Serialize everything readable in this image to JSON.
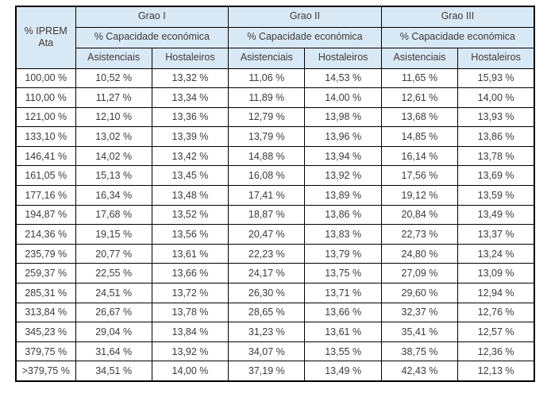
{
  "table": {
    "corner_header": "% IPREM Ata",
    "capacity_label": "% Capacidade económica",
    "groups": [
      {
        "label": "Grao I"
      },
      {
        "label": "Grao II"
      },
      {
        "label": "Grao III"
      }
    ],
    "sub_headers": [
      "Asistenciais",
      "Hostaleiros"
    ],
    "header_bg_color": "#d9e8f5",
    "border_color": "#000000",
    "text_color": "#3b3b3b",
    "rows": [
      {
        "iprem": "100,00 %",
        "values": [
          "10,52 %",
          "13,32 %",
          "11,06 %",
          "14,53 %",
          "11,65 %",
          "15,93 %"
        ]
      },
      {
        "iprem": "110,00 %",
        "values": [
          "11,27 %",
          "13,34 %",
          "11,89 %",
          "14,00 %",
          "12,61 %",
          "14,00 %"
        ]
      },
      {
        "iprem": "121,00 %",
        "values": [
          "12,10 %",
          "13,36 %",
          "12,79 %",
          "13,98 %",
          "13,68 %",
          "13,93 %"
        ]
      },
      {
        "iprem": "133,10 %",
        "values": [
          "13,02 %",
          "13,39 %",
          "13,79 %",
          "13,96 %",
          "14,85 %",
          "13,86 %"
        ]
      },
      {
        "iprem": "146,41 %",
        "values": [
          "14,02 %",
          "13,42 %",
          "14,88 %",
          "13,94 %",
          "16,14 %",
          "13,78 %"
        ]
      },
      {
        "iprem": "161,05 %",
        "values": [
          "15,13 %",
          "13,45 %",
          "16,08 %",
          "13,92 %",
          "17,56 %",
          "13,69 %"
        ]
      },
      {
        "iprem": "177,16 %",
        "values": [
          "16,34 %",
          "13,48 %",
          "17,41 %",
          "13,89 %",
          "19,12 %",
          "13,59 %"
        ]
      },
      {
        "iprem": "194,87 %",
        "values": [
          "17,68 %",
          "13,52 %",
          "18,87 %",
          "13,86 %",
          "20,84 %",
          "13,49 %"
        ]
      },
      {
        "iprem": "214,36 %",
        "values": [
          "19,15 %",
          "13,56 %",
          "20,47 %",
          "13,83 %",
          "22,73 %",
          "13,37 %"
        ]
      },
      {
        "iprem": "235,79 %",
        "values": [
          "20,77 %",
          "13,61 %",
          "22,23 %",
          "13,79 %",
          "24,80 %",
          "13,24 %"
        ]
      },
      {
        "iprem": "259,37 %",
        "values": [
          "22,55 %",
          "13,66 %",
          "24,17 %",
          "13,75 %",
          "27,09 %",
          "13,09 %"
        ]
      },
      {
        "iprem": "285,31 %",
        "values": [
          "24,51 %",
          "13,72 %",
          "26,30 %",
          "13,71 %",
          "29,60 %",
          "12,94 %"
        ]
      },
      {
        "iprem": "313,84 %",
        "values": [
          "26,67 %",
          "13,78 %",
          "28,65 %",
          "13,66 %",
          "32,37 %",
          "12,76 %"
        ]
      },
      {
        "iprem": "345,23 %",
        "values": [
          "29,04 %",
          "13,84 %",
          "31,23 %",
          "13,61 %",
          "35,41 %",
          "12,57 %"
        ]
      },
      {
        "iprem": "379,75 %",
        "values": [
          "31,64 %",
          "13,92 %",
          "34,07 %",
          "13,55 %",
          "38,75 %",
          "12,36 %"
        ]
      },
      {
        "iprem": ">379,75 %",
        "values": [
          "34,51 %",
          "14,00 %",
          "37,19 %",
          "13,49 %",
          "42,43 %",
          "12,13 %"
        ]
      }
    ]
  }
}
